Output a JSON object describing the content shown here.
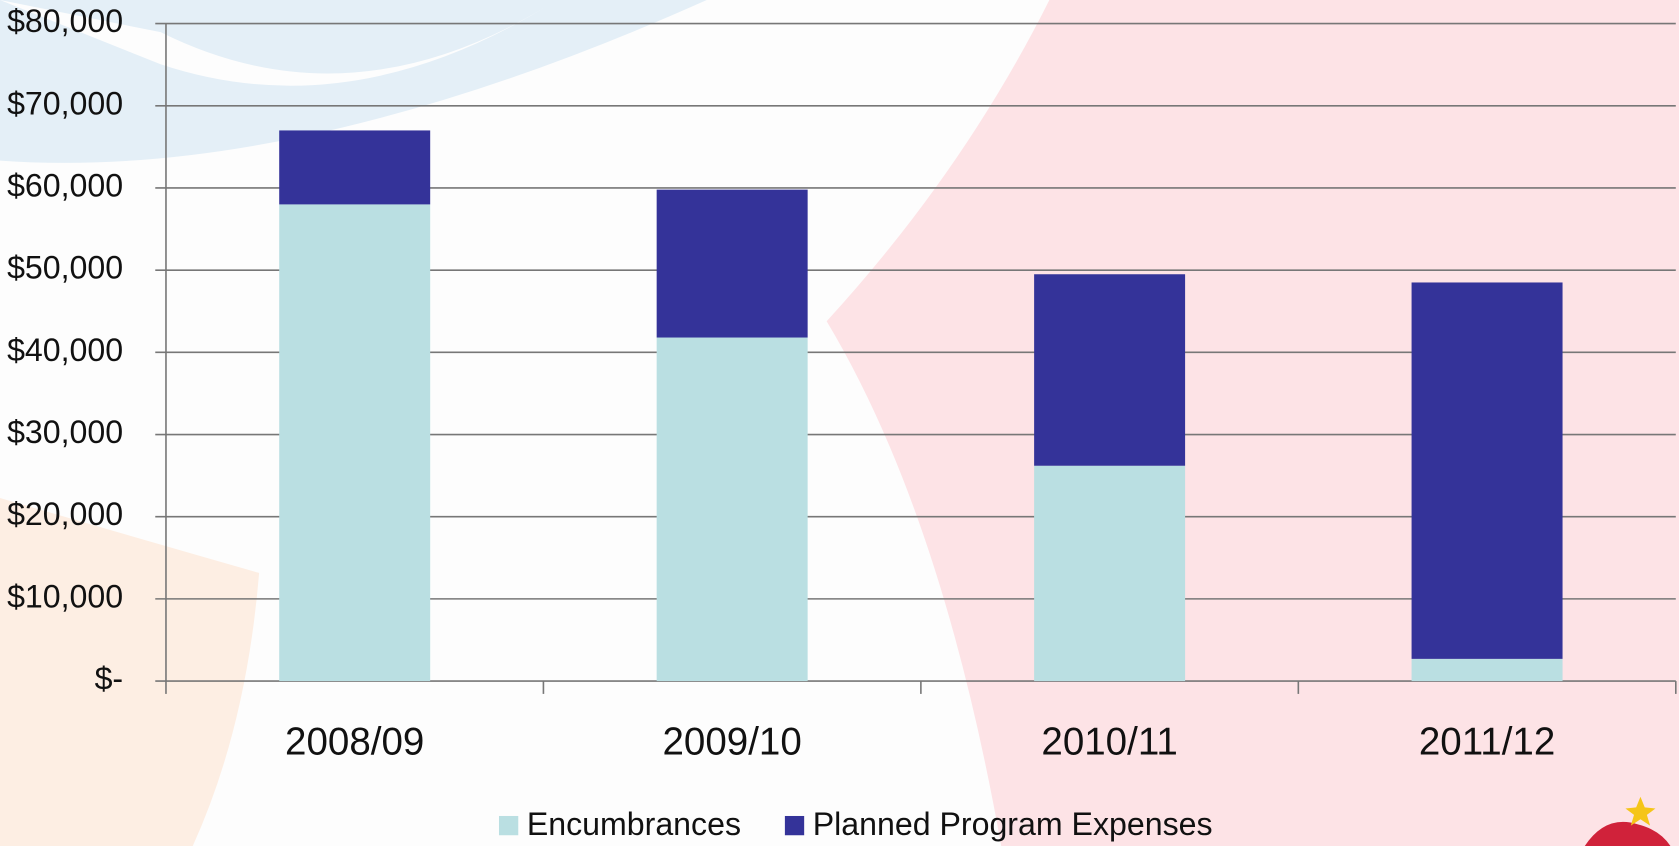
{
  "chart_data": {
    "type": "bar",
    "stacked": true,
    "categories": [
      "2008/09",
      "2009/10",
      "2010/11",
      "2011/12"
    ],
    "series": [
      {
        "name": "Encumbrances",
        "color": "#badfe2",
        "values": [
          58000,
          41800,
          26200,
          2700
        ]
      },
      {
        "name": "Planned Program Expenses",
        "color": "#343399",
        "values": [
          9000,
          18000,
          23300,
          45800
        ]
      }
    ],
    "ylim": [
      0,
      80000
    ],
    "yticks": [
      {
        "value": 0,
        "label": "$-"
      },
      {
        "value": 10000,
        "label": "$10,000"
      },
      {
        "value": 20000,
        "label": "$20,000"
      },
      {
        "value": 30000,
        "label": "$30,000"
      },
      {
        "value": 40000,
        "label": "$40,000"
      },
      {
        "value": 50000,
        "label": "$50,000"
      },
      {
        "value": 60000,
        "label": "$60,000"
      },
      {
        "value": 70000,
        "label": "$70,000"
      },
      {
        "value": 80000,
        "label": "$80,000"
      }
    ],
    "grid": true,
    "legend": "bottom"
  }
}
